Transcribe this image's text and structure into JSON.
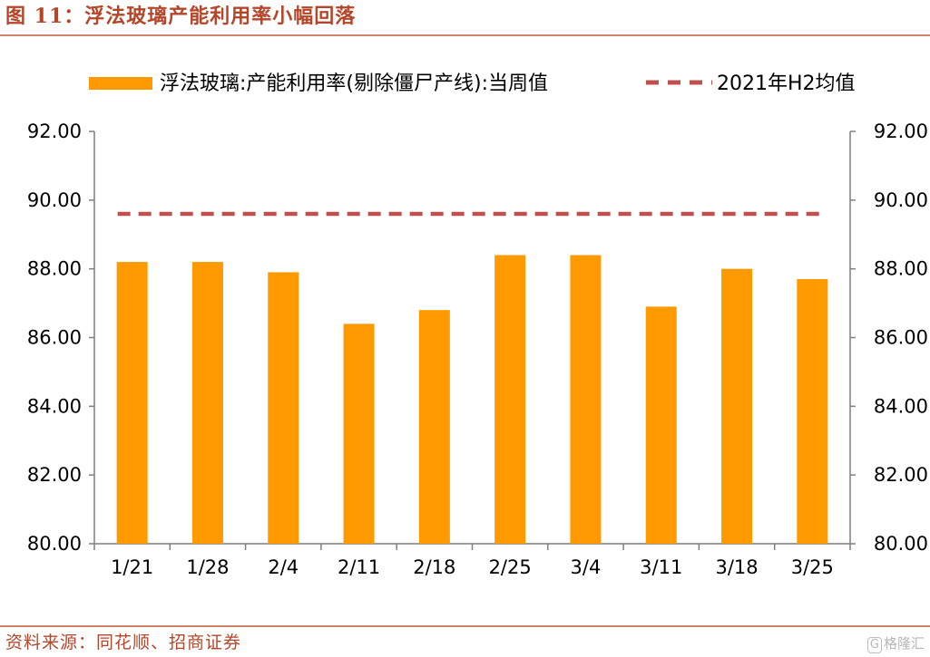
{
  "header": {
    "title": "图 11：浮法玻璃产能利用率小幅回落"
  },
  "footer": {
    "source": "资料来源：同花顺、招商证券",
    "watermark": "格隆汇",
    "watermark_mark": "G"
  },
  "colors": {
    "bar": "#FF9900",
    "reference_line": "#C0504D",
    "axis": "#7f7f7f",
    "title": "#B5462A"
  },
  "chart_data": {
    "type": "bar",
    "categories": [
      "1/21",
      "1/28",
      "2/4",
      "2/11",
      "2/18",
      "2/25",
      "3/4",
      "3/11",
      "3/18",
      "3/25"
    ],
    "series": [
      {
        "name": "浮法玻璃:产能利用率(剔除僵尸产线):当周值",
        "values": [
          88.2,
          88.2,
          87.9,
          86.4,
          86.8,
          88.4,
          88.4,
          86.9,
          88.0,
          87.7
        ]
      }
    ],
    "reference_lines": [
      {
        "name": "2021年H2均值",
        "value": 89.6,
        "style": "dashed"
      }
    ],
    "ylim": [
      80,
      92
    ],
    "y_ticks": [
      "80.00",
      "82.00",
      "84.00",
      "86.00",
      "88.00",
      "90.00",
      "92.00"
    ],
    "secondary_ylim": [
      80,
      92
    ],
    "secondary_y_ticks": [
      "80.00",
      "82.00",
      "84.00",
      "86.00",
      "88.00",
      "90.00",
      "92.00"
    ],
    "legend_position": "top",
    "grid": false
  }
}
